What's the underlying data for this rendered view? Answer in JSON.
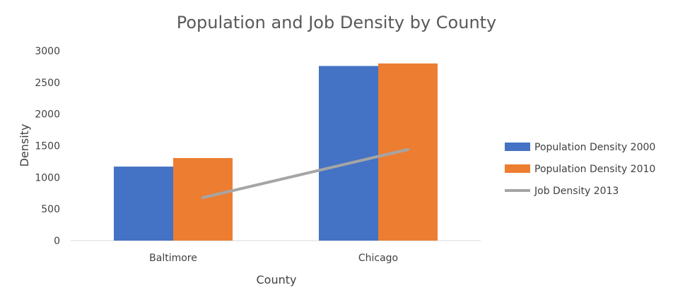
{
  "chart_data": {
    "type": "bar",
    "title": "Population and Job Density by County",
    "xlabel": "County",
    "ylabel": "Density",
    "categories": [
      "Baltimore",
      "Chicago"
    ],
    "ylim": [
      0,
      3000
    ],
    "yticks": [
      0,
      500,
      1000,
      1500,
      2000,
      2500,
      3000
    ],
    "grid": false,
    "legend_position": "right",
    "series": [
      {
        "name": "Population Density 2000",
        "type": "bar",
        "color": "#4472C4",
        "values": [
          1170,
          2760
        ]
      },
      {
        "name": "Population Density 2010",
        "type": "bar",
        "color": "#ED7D31",
        "values": [
          1305,
          2800
        ]
      },
      {
        "name": "Job Density 2013",
        "type": "line",
        "color": "#A5A5A5",
        "values": [
          680,
          1440
        ]
      }
    ]
  }
}
